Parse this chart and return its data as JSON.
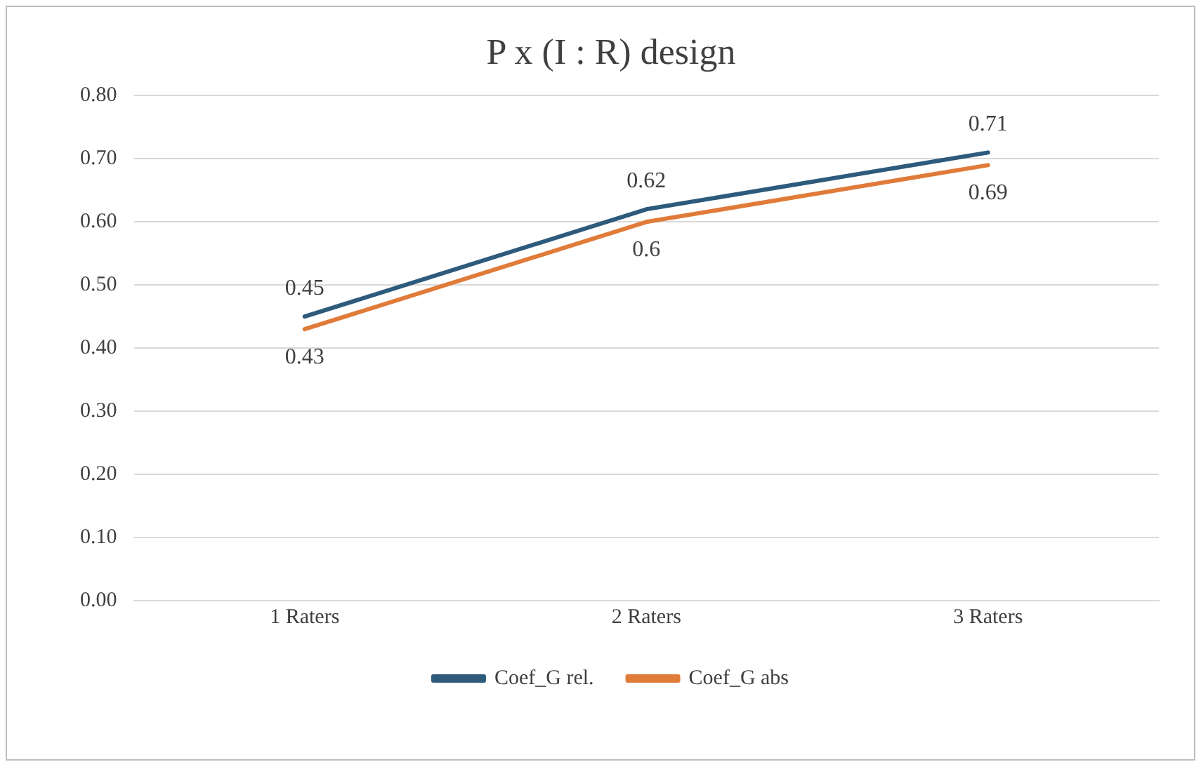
{
  "chart_data": {
    "type": "line",
    "title": "P x (I : R) design",
    "categories": [
      "1 Raters",
      "2 Raters",
      "3 Raters"
    ],
    "series": [
      {
        "name": "Coef_G rel.",
        "color": "#2e5a7c",
        "values": [
          0.45,
          0.62,
          0.71
        ]
      },
      {
        "name": "Coef_G abs",
        "color": "#e07b39",
        "values": [
          0.43,
          0.6,
          0.69
        ]
      }
    ],
    "ylim": [
      0,
      0.8
    ],
    "yticks": [
      {
        "value": 0,
        "label": "0.00"
      },
      {
        "value": 0.1,
        "label": "0.10"
      },
      {
        "value": 0.2,
        "label": "0.20"
      },
      {
        "value": 0.3,
        "label": "0.30"
      },
      {
        "value": 0.4,
        "label": "0.40"
      },
      {
        "value": 0.5,
        "label": "0.50"
      },
      {
        "value": 0.6,
        "label": "0.60"
      },
      {
        "value": 0.7,
        "label": "0.70"
      },
      {
        "value": 0.8,
        "label": "0.80"
      }
    ],
    "grid": "y",
    "legend": "bottom",
    "data_labels": true,
    "marker": "none",
    "line_style": "solid"
  }
}
